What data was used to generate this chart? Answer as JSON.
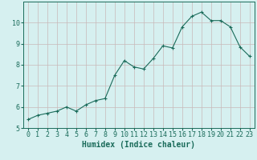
{
  "x": [
    0,
    1,
    2,
    3,
    4,
    5,
    6,
    7,
    8,
    9,
    10,
    11,
    12,
    13,
    14,
    15,
    16,
    17,
    18,
    19,
    20,
    21,
    22,
    23
  ],
  "y": [
    5.4,
    5.6,
    5.7,
    5.8,
    6.0,
    5.8,
    6.1,
    6.3,
    6.4,
    7.5,
    8.2,
    7.9,
    7.8,
    8.3,
    8.9,
    8.8,
    9.8,
    10.3,
    10.5,
    10.1,
    10.1,
    9.8,
    8.85,
    8.4
  ],
  "line_color": "#1a6b5a",
  "marker": "+",
  "marker_size": 3,
  "bg_color": "#d6f0f0",
  "grid_color": "#c8b8b8",
  "xlabel": "Humidex (Indice chaleur)",
  "xlim": [
    -0.5,
    23.5
  ],
  "ylim": [
    5,
    11
  ],
  "yticks": [
    5,
    6,
    7,
    8,
    9,
    10
  ],
  "xticks": [
    0,
    1,
    2,
    3,
    4,
    5,
    6,
    7,
    8,
    9,
    10,
    11,
    12,
    13,
    14,
    15,
    16,
    17,
    18,
    19,
    20,
    21,
    22,
    23
  ],
  "tick_color": "#1a6b5a",
  "label_color": "#1a6b5a",
  "xlabel_fontsize": 7,
  "tick_fontsize": 6,
  "line_width": 0.8,
  "marker_edge_width": 0.8
}
